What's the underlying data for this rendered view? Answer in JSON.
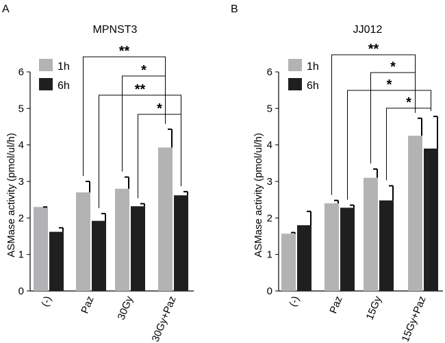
{
  "chart_data": [
    {
      "panel_label": "A",
      "type": "bar",
      "title": "MPNST3",
      "ylabel": "ASMase activity (pmol/ul/h)",
      "xlabel": "",
      "ylim": [
        0,
        6
      ],
      "yticks": [
        0,
        1,
        2,
        3,
        4,
        5,
        6
      ],
      "categories": [
        "(-)",
        "Paz",
        "30Gy",
        "30Gy+Paz"
      ],
      "series": [
        {
          "name": "1h",
          "color": "#b3b3b5",
          "values": [
            2.3,
            2.7,
            2.8,
            3.93
          ],
          "errors": [
            0.0,
            0.3,
            0.32,
            0.5
          ]
        },
        {
          "name": "6h",
          "color": "#1f1f1f",
          "values": [
            1.62,
            1.92,
            2.32,
            2.62
          ],
          "errors": [
            0.11,
            0.2,
            0.07,
            0.1
          ]
        }
      ],
      "legend_position": "top-left",
      "annotations": [
        {
          "label": "**",
          "from": [
            1,
            0
          ],
          "to": [
            3,
            0
          ],
          "level": 1
        },
        {
          "label": "*",
          "from": [
            2,
            0
          ],
          "to": [
            3,
            0
          ],
          "level": 2
        },
        {
          "label": "**",
          "from": [
            1,
            1
          ],
          "to": [
            3,
            1
          ],
          "level": 3
        },
        {
          "label": "*",
          "from": [
            2,
            1
          ],
          "to": [
            3,
            1
          ],
          "level": 4
        }
      ]
    },
    {
      "panel_label": "B",
      "type": "bar",
      "title": "JJ012",
      "ylabel": "ASMase activity (pmol/ul/h)",
      "xlabel": "",
      "ylim": [
        0,
        6
      ],
      "yticks": [
        0,
        1,
        2,
        3,
        4,
        5,
        6
      ],
      "categories": [
        "(-)",
        "Paz",
        "15Gy",
        "15Gy+Paz"
      ],
      "series": [
        {
          "name": "1h",
          "color": "#b3b3b5",
          "values": [
            1.57,
            2.4,
            3.1,
            4.25
          ],
          "errors": [
            0.03,
            0.08,
            0.24,
            0.48
          ]
        },
        {
          "name": "6h",
          "color": "#1f1f1f",
          "values": [
            1.8,
            2.28,
            2.48,
            3.9
          ],
          "errors": [
            0.38,
            0.07,
            0.4,
            0.88
          ]
        }
      ],
      "legend_position": "top-left",
      "annotations": [
        {
          "label": "**",
          "from": [
            1,
            0
          ],
          "to": [
            3,
            0
          ],
          "level": 1
        },
        {
          "label": "*",
          "from": [
            2,
            0
          ],
          "to": [
            3,
            0
          ],
          "level": 2
        },
        {
          "label": "*",
          "from": [
            1,
            1
          ],
          "to": [
            3,
            1
          ],
          "level": 3
        },
        {
          "label": "*",
          "from": [
            2,
            1
          ],
          "to": [
            3,
            1
          ],
          "level": 4
        }
      ]
    }
  ]
}
